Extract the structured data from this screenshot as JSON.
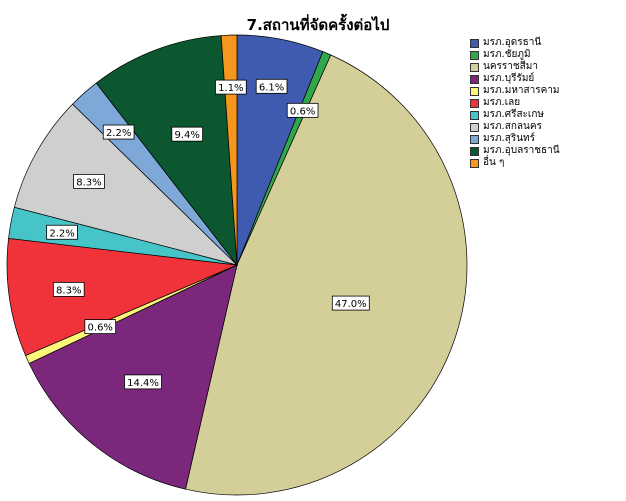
{
  "chart_data": {
    "type": "pie",
    "title": "7.สถานที่จัดครั้งต่อไป",
    "legend_position": "top-right",
    "start_angle_deg": 0,
    "direction": "clockwise",
    "slices": [
      {
        "label": "มรภ.อุดรธานี",
        "value": 6.1,
        "data_label": "6.1%",
        "color": "#3e5bb0"
      },
      {
        "label": "มรภ.ชัยภูมิ",
        "value": 0.6,
        "data_label": "0.6%",
        "color": "#30a84a"
      },
      {
        "label": "นครราชสีมา",
        "value": 47.0,
        "data_label": "47.0%",
        "color": "#d4cf99"
      },
      {
        "label": "มรภ.บุรีรัมย์",
        "value": 14.4,
        "data_label": "14.4%",
        "color": "#7b287c"
      },
      {
        "label": "มรภ.มหาสารคาม",
        "value": 0.6,
        "data_label": "0.6%",
        "color": "#fbf67a"
      },
      {
        "label": "มรภ.เลย",
        "value": 8.3,
        "data_label": "8.3%",
        "color": "#f0323a"
      },
      {
        "label": "มรภ.ศรีสะเกษ",
        "value": 2.2,
        "data_label": "2.2%",
        "color": "#47c4c8"
      },
      {
        "label": "มรภ.สกลนคร",
        "value": 8.3,
        "data_label": "8.3%",
        "color": "#cfcfcf"
      },
      {
        "label": "มรภ.สุรินทร์",
        "value": 2.2,
        "data_label": "2.2%",
        "color": "#7da8d8"
      },
      {
        "label": "มรภ.อุบลราชธานี",
        "value": 9.4,
        "data_label": "9.4%",
        "color": "#0c5630"
      },
      {
        "label": "อื่น ๆ",
        "value": 1.1,
        "data_label": "1.1%",
        "color": "#f5961e"
      }
    ]
  }
}
